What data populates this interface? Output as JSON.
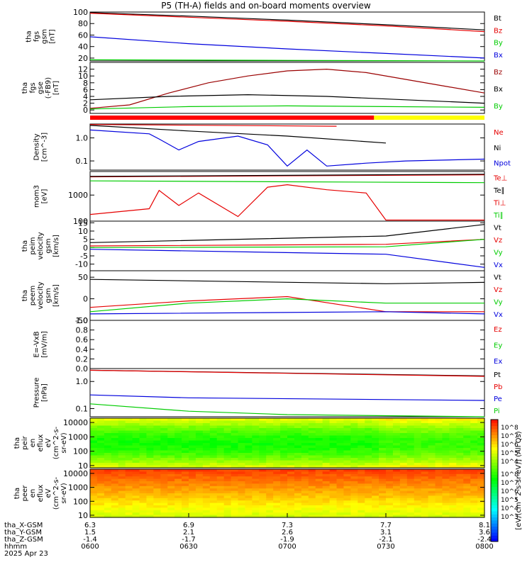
{
  "title": "P5 (TH-A) fields and on-board moments overview",
  "colors": {
    "black": "#000000",
    "red": "#e60000",
    "green": "#00cc00",
    "blue": "#0000dd",
    "darkred": "#9a0000"
  },
  "chart_data": [
    {
      "type": "line",
      "ylabel_lines": [
        "tha",
        "fgs",
        "gsm",
        "[nT]"
      ],
      "ylim": [
        15,
        100
      ],
      "yticks": [
        {
          "v": 100,
          "label": "100"
        },
        {
          "v": 80,
          "label": "80"
        },
        {
          "v": 60,
          "label": "60"
        },
        {
          "v": 40,
          "label": "40"
        },
        {
          "v": 20,
          "label": "20"
        }
      ],
      "series": [
        {
          "name": "Bt",
          "color": "black",
          "x": [
            0,
            0.5,
            1,
            1.5,
            2
          ],
          "y": [
            99,
            93,
            86,
            78,
            69
          ]
        },
        {
          "name": "Bz",
          "color": "red",
          "x": [
            0,
            0.5,
            1,
            1.5,
            2
          ],
          "y": [
            98,
            91,
            84,
            76,
            66
          ]
        },
        {
          "name": "By",
          "color": "green",
          "x": [
            0,
            1,
            2
          ],
          "y": [
            17,
            16,
            15
          ]
        },
        {
          "name": "Bx",
          "color": "blue",
          "x": [
            0,
            0.5,
            1,
            1.5,
            2
          ],
          "y": [
            57,
            45,
            36,
            28,
            20
          ]
        }
      ]
    },
    {
      "type": "line",
      "ylabel_lines": [
        "tha",
        "fgs",
        "gse",
        "(-FB9)",
        "[nT]"
      ],
      "ylim": [
        -1,
        14
      ],
      "yticks": [
        {
          "v": 12,
          "label": "12"
        },
        {
          "v": 10,
          "label": "10"
        },
        {
          "v": 8,
          "label": "8"
        },
        {
          "v": 6,
          "label": "6"
        },
        {
          "v": 4,
          "label": "4"
        },
        {
          "v": 2,
          "label": "2"
        },
        {
          "v": 0,
          "label": "0"
        }
      ],
      "series": [
        {
          "name": "Bz",
          "color": "darkred",
          "x": [
            0,
            0.2,
            0.4,
            0.6,
            0.8,
            1,
            1.2,
            1.4,
            1.6,
            1.8,
            2
          ],
          "y": [
            0.5,
            1.5,
            5,
            8,
            10,
            11.5,
            12,
            11,
            9,
            7,
            5
          ]
        },
        {
          "name": "Bx",
          "color": "black",
          "x": [
            0,
            0.4,
            0.8,
            1.2,
            1.6,
            2
          ],
          "y": [
            3,
            4,
            4.5,
            4,
            3,
            2
          ]
        },
        {
          "name": "By",
          "color": "green",
          "x": [
            0,
            0.5,
            1,
            1.5,
            2
          ],
          "y": [
            0.3,
            1,
            1.2,
            1,
            0.8
          ]
        }
      ]
    },
    {
      "type": "line",
      "ylabel_lines": [
        "Density",
        "[cm^-3]"
      ],
      "log": true,
      "ylim": [
        0.04,
        4
      ],
      "yticks": [
        {
          "v": 1,
          "label": "1.0"
        },
        {
          "v": 0.1,
          "label": "0.1"
        }
      ],
      "series": [
        {
          "name": "Ne",
          "color": "red",
          "x": [
            0,
            1.25
          ],
          "y": [
            3.8,
            3.2
          ]
        },
        {
          "name": "Ni",
          "color": "black",
          "x": [
            0,
            0.5,
            1,
            1.5
          ],
          "y": [
            3.5,
            2,
            1.2,
            0.6
          ]
        },
        {
          "name": "Npot",
          "color": "blue",
          "x": [
            0,
            0.3,
            0.35,
            0.45,
            0.55,
            0.75,
            0.9,
            1.0,
            1.1,
            1.2,
            1.4,
            1.6,
            2.0
          ],
          "y": [
            2.2,
            1.5,
            0.9,
            0.3,
            0.7,
            1.2,
            0.5,
            0.06,
            0.3,
            0.06,
            0.08,
            0.1,
            0.12
          ]
        }
      ]
    },
    {
      "type": "line",
      "ylabel_lines": [
        "mom3",
        "[eV]"
      ],
      "log": true,
      "ylim": [
        100,
        8000
      ],
      "yticks": [
        {
          "v": 1000,
          "label": "1000"
        },
        {
          "v": 100,
          "label": "100"
        }
      ],
      "series": [
        {
          "name": "Te⊥",
          "color": "red",
          "x": [
            0,
            2
          ],
          "y": [
            5000,
            6000
          ]
        },
        {
          "name": "Te∥",
          "color": "black",
          "x": [
            0,
            2
          ],
          "y": [
            5200,
            6300
          ]
        },
        {
          "name": "Ti⊥",
          "color": "red",
          "x": [
            0,
            0.3,
            0.35,
            0.45,
            0.55,
            0.75,
            0.9,
            1.0,
            1.2,
            1.4,
            1.5,
            1.6,
            2.0
          ],
          "y": [
            180,
            300,
            1500,
            400,
            1200,
            150,
            2000,
            2500,
            1600,
            1200,
            110,
            110,
            110
          ]
        },
        {
          "name": "Ti∥",
          "color": "green",
          "x": [
            0,
            2
          ],
          "y": [
            3500,
            3000
          ]
        }
      ]
    },
    {
      "type": "line",
      "ylabel_lines": [
        "tha",
        "peim",
        "velocity",
        "gsm",
        "[km/s]"
      ],
      "ylim": [
        -14,
        16
      ],
      "yticks": [
        {
          "v": 15,
          "label": "15"
        },
        {
          "v": 10,
          "label": "10"
        },
        {
          "v": 5,
          "label": "5"
        },
        {
          "v": 0,
          "label": "0"
        },
        {
          "v": -5,
          "label": "-5"
        },
        {
          "v": -10,
          "label": "-10"
        }
      ],
      "series": [
        {
          "name": "Vt",
          "color": "black",
          "x": [
            0,
            1.5,
            2
          ],
          "y": [
            3,
            7,
            14
          ]
        },
        {
          "name": "Vz",
          "color": "red",
          "x": [
            0,
            1.5,
            2
          ],
          "y": [
            1,
            2,
            5
          ]
        },
        {
          "name": "Vy",
          "color": "green",
          "x": [
            0,
            1.5,
            2
          ],
          "y": [
            0,
            0.5,
            5
          ]
        },
        {
          "name": "Vx",
          "color": "blue",
          "x": [
            0,
            1.5,
            2
          ],
          "y": [
            -1,
            -4,
            -12
          ]
        }
      ]
    },
    {
      "type": "line",
      "ylabel_lines": [
        "tha",
        "peem",
        "velocity",
        "gsm",
        "[km/s]"
      ],
      "ylim": [
        -50,
        65
      ],
      "yticks": [
        {
          "v": 50,
          "label": "50"
        },
        {
          "v": 0,
          "label": "0"
        },
        {
          "v": -50,
          "label": "-50"
        }
      ],
      "series": [
        {
          "name": "Vt",
          "color": "black",
          "x": [
            0,
            1.5,
            2
          ],
          "y": [
            45,
            35,
            38
          ]
        },
        {
          "name": "Vz",
          "color": "red",
          "x": [
            0,
            0.5,
            1.0,
            1.5,
            2
          ],
          "y": [
            -20,
            -5,
            5,
            -30,
            -30
          ]
        },
        {
          "name": "Vy",
          "color": "green",
          "x": [
            0,
            0.5,
            1.0,
            1.5,
            2
          ],
          "y": [
            -30,
            -10,
            0,
            -10,
            -10
          ]
        },
        {
          "name": "Vx",
          "color": "blue",
          "x": [
            0,
            1.5,
            2
          ],
          "y": [
            -35,
            -30,
            -35
          ]
        }
      ]
    },
    {
      "type": "line",
      "ylabel_lines": [
        "E=-VxB",
        "[mV/m]"
      ],
      "ylim": [
        0,
        1
      ],
      "yticks": [
        {
          "v": 1.0,
          "label": "1.0"
        },
        {
          "v": 0.8,
          "label": "0.8"
        },
        {
          "v": 0.6,
          "label": "0.6"
        },
        {
          "v": 0.4,
          "label": "0.4"
        },
        {
          "v": 0.2,
          "label": "0.2"
        },
        {
          "v": 0.0,
          "label": "0.0"
        }
      ],
      "series": [
        {
          "name": "Ez",
          "color": "red",
          "x": [],
          "y": []
        },
        {
          "name": "Ey",
          "color": "green",
          "x": [],
          "y": []
        },
        {
          "name": "Ex",
          "color": "blue",
          "x": [],
          "y": []
        }
      ]
    },
    {
      "type": "line",
      "ylabel_lines": [
        "Pressure",
        "[nPa]"
      ],
      "log": true,
      "ylim": [
        0.05,
        3
      ],
      "yticks": [
        {
          "v": 1,
          "label": "1.0"
        },
        {
          "v": 0.1,
          "label": "0.1"
        }
      ],
      "series": [
        {
          "name": "Pt",
          "color": "black",
          "x": [
            0,
            2
          ],
          "y": [
            2.6,
            1.6
          ]
        },
        {
          "name": "Pb",
          "color": "red",
          "x": [
            0,
            2
          ],
          "y": [
            2.6,
            1.55
          ]
        },
        {
          "name": "Pe",
          "color": "blue",
          "x": [
            0,
            0.5,
            2
          ],
          "y": [
            0.32,
            0.25,
            0.2
          ]
        },
        {
          "name": "Pi",
          "color": "green",
          "x": [
            0,
            0.5,
            1,
            2
          ],
          "y": [
            0.15,
            0.08,
            0.06,
            0.05
          ]
        }
      ]
    },
    {
      "type": "heatmap",
      "ylabel_lines": [
        "tha",
        "peir",
        "en",
        "eflux",
        "eV",
        "(cm^2-s-",
        "sr-eV)"
      ],
      "log": true,
      "ylim": [
        7,
        20000
      ],
      "yticks": [
        {
          "v": 10000,
          "label": "10000"
        },
        {
          "v": 1000,
          "label": "1000"
        },
        {
          "v": 100,
          "label": "100"
        },
        {
          "v": 10,
          "label": "10"
        }
      ]
    },
    {
      "type": "heatmap",
      "ylabel_lines": [
        "tha",
        "peer",
        "en",
        "eflux",
        "eV",
        "(cm^2-s-",
        "sr-eV)"
      ],
      "log": true,
      "ylim": [
        7,
        20000
      ],
      "yticks": [
        {
          "v": 10000,
          "label": "10000"
        },
        {
          "v": 1000,
          "label": "1000"
        },
        {
          "v": 100,
          "label": "100"
        },
        {
          "v": 10,
          "label": "10"
        }
      ]
    }
  ],
  "colorbar": {
    "label": "[eV/(cm^2-s-sr-eV)] (All Qs)",
    "ticks_top": [
      "10^8",
      "10^7",
      "10^6",
      "10^5",
      "10^4"
    ],
    "ticks_bottom": [
      "10^8",
      "10^7",
      "10^6",
      "10^5",
      "10^4",
      "10^3"
    ]
  },
  "footer": {
    "row_labels": [
      "tha_X-GSM",
      "tha_Y-GSM",
      "tha_Z-GSM",
      "hhmm",
      "2025 Apr 23"
    ],
    "columns": [
      [
        "6.3",
        "1.5",
        "-1.4",
        "0600"
      ],
      [
        "6.9",
        "2.1",
        "-1.7",
        "0630"
      ],
      [
        "7.3",
        "2.6",
        "-1.9",
        "0700"
      ],
      [
        "7.7",
        "3.1",
        "-2.1",
        "0730"
      ],
      [
        "8.1",
        "3.6",
        "-2.4",
        "0800"
      ]
    ]
  }
}
